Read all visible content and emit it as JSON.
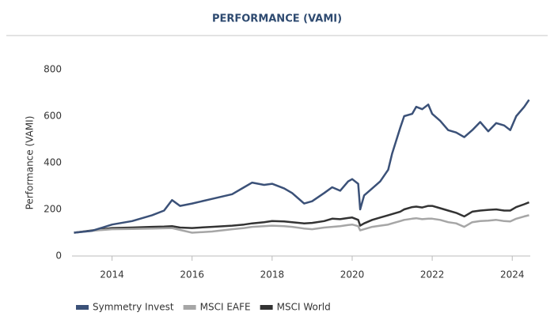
{
  "chart_data": {
    "type": "line",
    "title": "PERFORMANCE (VAMI)",
    "y_label": "Performance (VAMI)",
    "x": [
      2013.05,
      2013.5,
      2014,
      2014.5,
      2015,
      2015.3,
      2015.5,
      2015.7,
      2016,
      2016.5,
      2017,
      2017.3,
      2017.5,
      2017.8,
      2018,
      2018.3,
      2018.5,
      2018.8,
      2019,
      2019.3,
      2019.5,
      2019.7,
      2019.9,
      2020,
      2020.15,
      2020.2,
      2020.3,
      2020.5,
      2020.7,
      2020.9,
      2021,
      2021.2,
      2021.3,
      2021.5,
      2021.6,
      2021.75,
      2021.9,
      2022,
      2022.2,
      2022.4,
      2022.6,
      2022.8,
      2023,
      2023.2,
      2023.4,
      2023.6,
      2023.8,
      2023.95,
      2024.1,
      2024.3,
      2024.42
    ],
    "series": [
      {
        "name": "Symmetry Invest",
        "color": "#3b5178",
        "values": [
          100,
          108,
          135,
          150,
          175,
          195,
          240,
          215,
          225,
          245,
          265,
          295,
          315,
          305,
          310,
          290,
          270,
          225,
          235,
          270,
          295,
          280,
          320,
          330,
          310,
          200,
          260,
          290,
          320,
          370,
          440,
          550,
          600,
          610,
          640,
          630,
          650,
          610,
          580,
          540,
          530,
          510,
          540,
          575,
          535,
          570,
          560,
          540,
          600,
          640,
          670
        ]
      },
      {
        "name": "MSCI EAFE",
        "color": "#a6a6a6",
        "values": [
          100,
          108,
          115,
          116,
          118,
          119,
          120,
          112,
          100,
          105,
          115,
          120,
          125,
          128,
          130,
          128,
          125,
          118,
          115,
          122,
          125,
          128,
          133,
          135,
          128,
          110,
          115,
          125,
          130,
          135,
          140,
          150,
          155,
          160,
          162,
          158,
          160,
          160,
          155,
          145,
          140,
          125,
          145,
          150,
          152,
          155,
          150,
          148,
          160,
          170,
          175
        ]
      },
      {
        "name": "MSCI World",
        "color": "#333333",
        "values": [
          100,
          110,
          120,
          122,
          125,
          126,
          128,
          122,
          120,
          125,
          130,
          135,
          140,
          145,
          150,
          148,
          145,
          140,
          142,
          150,
          160,
          158,
          163,
          165,
          155,
          130,
          140,
          155,
          165,
          175,
          180,
          190,
          200,
          210,
          212,
          208,
          215,
          215,
          205,
          195,
          185,
          170,
          190,
          195,
          198,
          200,
          195,
          195,
          210,
          222,
          230
        ]
      }
    ],
    "xlim": [
      2013,
      2024.45
    ],
    "xticks": [
      2014,
      2016,
      2018,
      2020,
      2022,
      2024
    ],
    "ylim": [
      0,
      800
    ],
    "yticks": [
      0,
      200,
      400,
      600,
      800
    ],
    "grid": false,
    "legend": "bottom"
  }
}
